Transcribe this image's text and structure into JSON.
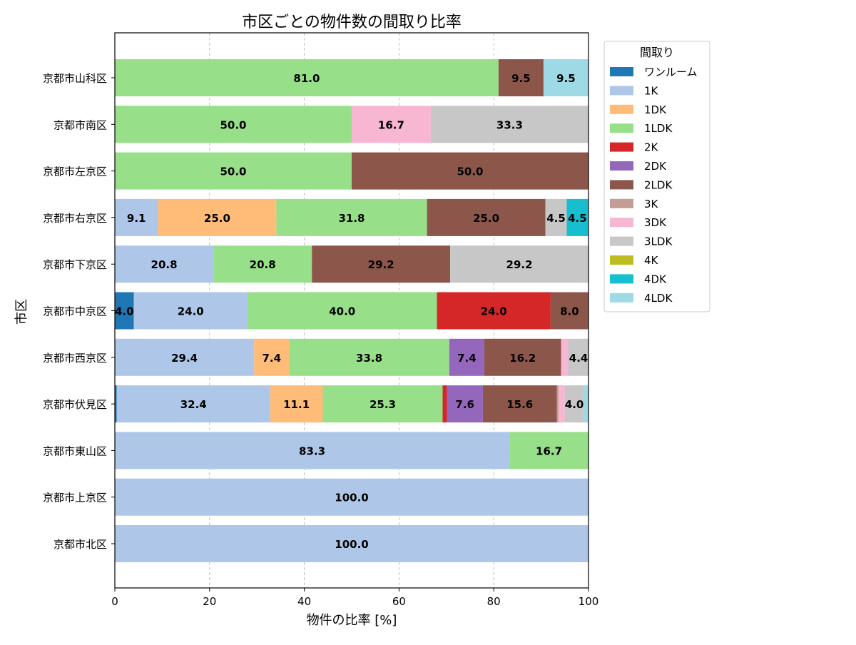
{
  "chart_data": {
    "type": "bar",
    "orientation": "horizontal",
    "stacked": true,
    "title": "市区ごとの物件数の間取り比率",
    "xlabel": "物件の比率 [%]",
    "ylabel": "市区",
    "xlim": [
      0,
      100
    ],
    "xticks": [
      "0",
      "20",
      "40",
      "60",
      "80",
      "100"
    ],
    "grid": true,
    "legend_title": "間取り",
    "legend_position": "outside-right-top",
    "categories": [
      "京都市北区",
      "京都市上京区",
      "京都市東山区",
      "京都市伏見区",
      "京都市西京区",
      "京都市中京区",
      "京都市下京区",
      "京都市右京区",
      "京都市左京区",
      "京都市南区",
      "京都市山科区"
    ],
    "series": [
      {
        "name": "ワンルーム",
        "color": "#1f77b4",
        "values": [
          0,
          0,
          0,
          0.4,
          0,
          4.0,
          0,
          0,
          0,
          0,
          0
        ]
      },
      {
        "name": "1K",
        "color": "#aec7e8",
        "values": [
          100.0,
          100.0,
          83.3,
          32.4,
          29.4,
          24.0,
          20.8,
          9.1,
          0,
          0,
          0
        ]
      },
      {
        "name": "1DK",
        "color": "#ffbb78",
        "values": [
          0,
          0,
          0,
          11.1,
          7.4,
          0,
          0,
          25.0,
          0,
          0,
          0
        ]
      },
      {
        "name": "1LDK",
        "color": "#98df8a",
        "values": [
          0,
          0,
          16.7,
          25.3,
          33.8,
          40.0,
          20.8,
          31.8,
          50.0,
          50.0,
          81.0
        ]
      },
      {
        "name": "2K",
        "color": "#d62728",
        "values": [
          0,
          0,
          0,
          0.9,
          0,
          24.0,
          0,
          0,
          0,
          0,
          0
        ]
      },
      {
        "name": "2DK",
        "color": "#9467bd",
        "values": [
          0,
          0,
          0,
          7.6,
          7.4,
          0,
          0,
          0,
          0,
          0,
          0
        ]
      },
      {
        "name": "2LDK",
        "color": "#8c564b",
        "values": [
          0,
          0,
          0,
          15.6,
          16.2,
          8.0,
          29.2,
          25.0,
          50.0,
          0,
          9.5
        ]
      },
      {
        "name": "3K",
        "color": "#c49c94",
        "values": [
          0,
          0,
          0,
          0.4,
          0,
          0,
          0,
          0,
          0,
          0,
          0
        ]
      },
      {
        "name": "3DK",
        "color": "#f7b6d2",
        "values": [
          0,
          0,
          0,
          1.3,
          1.5,
          0,
          0,
          0,
          0,
          16.7,
          0
        ]
      },
      {
        "name": "3LDK",
        "color": "#c7c7c7",
        "values": [
          0,
          0,
          0,
          4.0,
          4.4,
          0,
          29.2,
          4.5,
          0,
          33.3,
          0
        ]
      },
      {
        "name": "4K",
        "color": "#bcbd22",
        "values": [
          0,
          0,
          0,
          0,
          0,
          0,
          0,
          0,
          0,
          0,
          0
        ]
      },
      {
        "name": "4DK",
        "color": "#17becf",
        "values": [
          0,
          0,
          0,
          0,
          0,
          0,
          0,
          4.5,
          0,
          0,
          0
        ]
      },
      {
        "name": "4LDK",
        "color": "#9edae5",
        "values": [
          0,
          0,
          0,
          0.9,
          0,
          0,
          0,
          0,
          0,
          0,
          9.5
        ]
      }
    ]
  }
}
